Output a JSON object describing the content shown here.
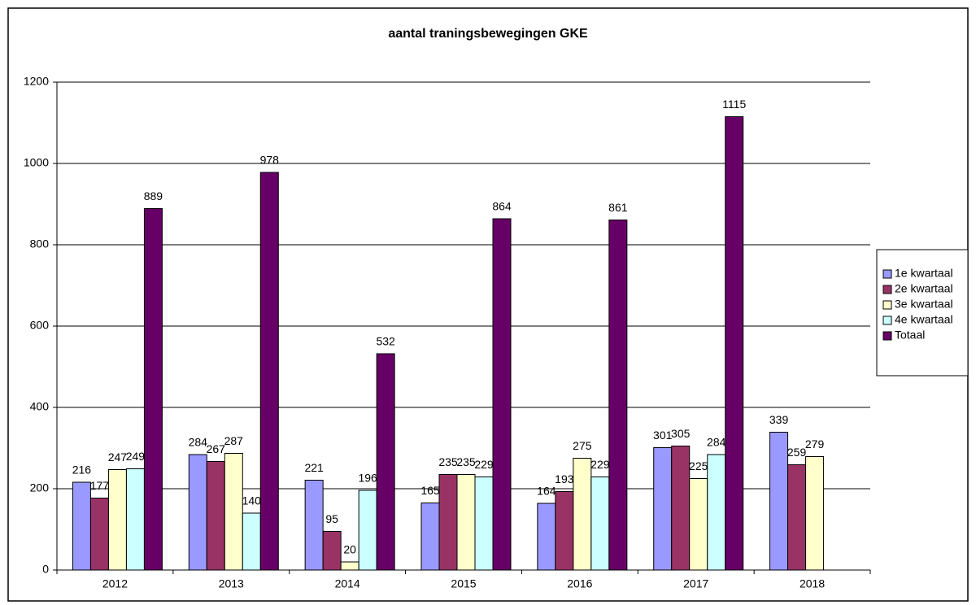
{
  "chart_data": {
    "type": "bar",
    "title": "aantal traningsbewegingen GKE",
    "categories": [
      "2012",
      "2013",
      "2014",
      "2015",
      "2016",
      "2017",
      "2018"
    ],
    "series": [
      {
        "name": "1e kwartaal",
        "color": "#9999ff",
        "values": [
          216,
          284,
          221,
          165,
          164,
          301,
          339
        ]
      },
      {
        "name": "2e kwartaal",
        "color": "#993366",
        "values": [
          177,
          267,
          95,
          235,
          193,
          305,
          259
        ]
      },
      {
        "name": "3e kwartaal",
        "color": "#ffffcc",
        "values": [
          247,
          287,
          20,
          235,
          275,
          225,
          279
        ]
      },
      {
        "name": "4e kwartaal",
        "color": "#ccffff",
        "values": [
          249,
          140,
          196,
          229,
          229,
          284,
          null
        ]
      },
      {
        "name": "Totaal",
        "color": "#660066",
        "values": [
          889,
          978,
          532,
          864,
          861,
          1115,
          null
        ]
      }
    ],
    "ylim": [
      0,
      1200
    ],
    "yticks": [
      0,
      200,
      400,
      600,
      800,
      1000,
      1200
    ],
    "grid": true,
    "legend": "right"
  }
}
